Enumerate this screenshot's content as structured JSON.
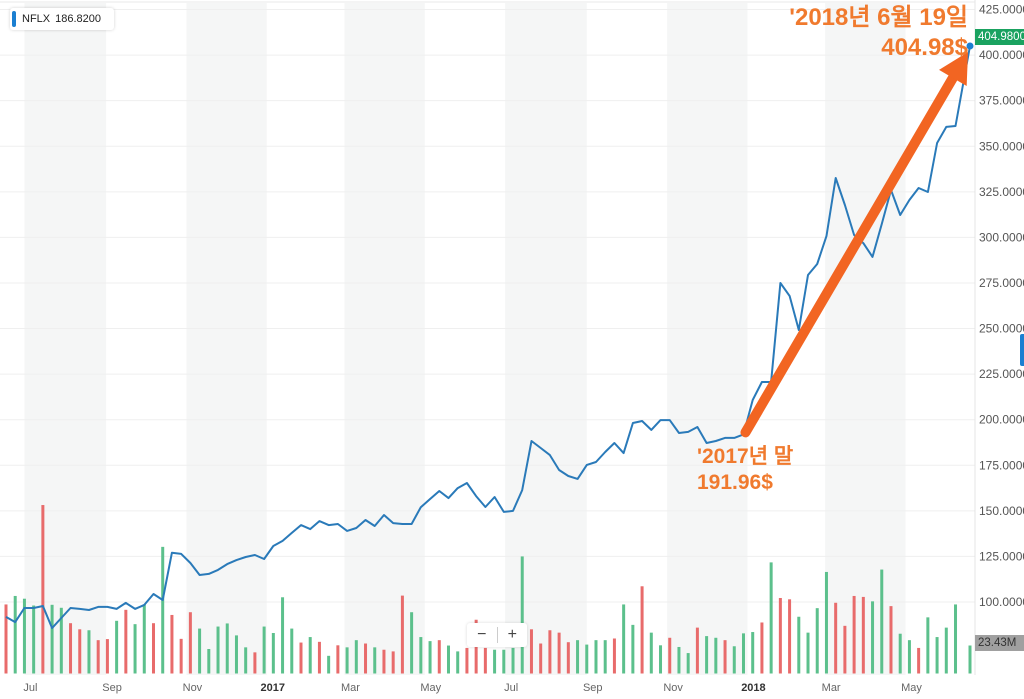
{
  "legend": {
    "symbol": "NFLX",
    "value": "186.8200"
  },
  "price_badge": "404.9800",
  "volume_badge": "23.43M",
  "zoom_controls": {
    "minus": "−",
    "plus": "+"
  },
  "annotations": {
    "end_date": "'2018년 6월 19일",
    "end_price": "404.98$",
    "start_date": "'2017년 말",
    "start_price": "191.96$"
  },
  "colors": {
    "line": "#2a7ab9",
    "up": "#5cc08c",
    "down": "#e86b6b",
    "band": "#f5f6f6",
    "annotation": "#f26522",
    "price_badge": "#1aa260"
  },
  "chart_data": {
    "type": "line",
    "title": "",
    "xlabel": "",
    "ylabel": "",
    "ylim": [
      90,
      425
    ],
    "y_ticks": [
      "100.0000",
      "125.0000",
      "150.0000",
      "175.0000",
      "200.0000",
      "225.0000",
      "250.0000",
      "275.0000",
      "300.0000",
      "325.0000",
      "350.0000",
      "375.0000",
      "400.0000",
      "425.0000"
    ],
    "y_tick_values": [
      100,
      125,
      150,
      175,
      200,
      225,
      250,
      275,
      300,
      325,
      350,
      375,
      400,
      425
    ],
    "x_ticks": [
      {
        "label": "Jul",
        "date": "2016-07-01"
      },
      {
        "label": "Sep",
        "date": "2016-09-01"
      },
      {
        "label": "Nov",
        "date": "2016-11-01"
      },
      {
        "label": "2017",
        "date": "2017-01-01",
        "major": true
      },
      {
        "label": "Mar",
        "date": "2017-03-01"
      },
      {
        "label": "May",
        "date": "2017-05-01"
      },
      {
        "label": "Jul",
        "date": "2017-07-01"
      },
      {
        "label": "Sep",
        "date": "2017-09-01"
      },
      {
        "label": "Nov",
        "date": "2017-11-01"
      },
      {
        "label": "2018",
        "date": "2018-01-01",
        "major": true
      },
      {
        "label": "Mar",
        "date": "2018-03-01"
      },
      {
        "label": "May",
        "date": "2018-05-01"
      }
    ],
    "shaded_bands": [
      [
        "2016-07-01",
        "2016-09-01"
      ],
      [
        "2016-11-01",
        "2017-01-01"
      ],
      [
        "2017-03-01",
        "2017-05-01"
      ],
      [
        "2017-07-01",
        "2017-09-01"
      ],
      [
        "2017-11-01",
        "2018-01-01"
      ],
      [
        "2018-03-01",
        "2018-05-01"
      ]
    ],
    "grid": true,
    "x": [
      "2016-06-17",
      "2016-06-24",
      "2016-07-01",
      "2016-07-08",
      "2016-07-15",
      "2016-07-22",
      "2016-07-29",
      "2016-08-05",
      "2016-08-12",
      "2016-08-19",
      "2016-08-26",
      "2016-09-02",
      "2016-09-09",
      "2016-09-16",
      "2016-09-23",
      "2016-09-30",
      "2016-10-07",
      "2016-10-14",
      "2016-10-21",
      "2016-10-28",
      "2016-11-04",
      "2016-11-11",
      "2016-11-18",
      "2016-11-25",
      "2016-12-02",
      "2016-12-09",
      "2016-12-16",
      "2016-12-23",
      "2016-12-30",
      "2017-01-06",
      "2017-01-13",
      "2017-01-20",
      "2017-01-27",
      "2017-02-03",
      "2017-02-10",
      "2017-02-17",
      "2017-02-24",
      "2017-03-03",
      "2017-03-10",
      "2017-03-17",
      "2017-03-24",
      "2017-03-31",
      "2017-04-07",
      "2017-04-14",
      "2017-04-21",
      "2017-04-28",
      "2017-05-05",
      "2017-05-12",
      "2017-05-19",
      "2017-05-26",
      "2017-06-02",
      "2017-06-09",
      "2017-06-16",
      "2017-06-23",
      "2017-06-30",
      "2017-07-07",
      "2017-07-14",
      "2017-07-21",
      "2017-07-28",
      "2017-08-04",
      "2017-08-11",
      "2017-08-18",
      "2017-08-25",
      "2017-09-01",
      "2017-09-08",
      "2017-09-15",
      "2017-09-22",
      "2017-09-29",
      "2017-10-06",
      "2017-10-13",
      "2017-10-20",
      "2017-10-27",
      "2017-11-03",
      "2017-11-10",
      "2017-11-17",
      "2017-11-24",
      "2017-12-01",
      "2017-12-08",
      "2017-12-15",
      "2017-12-22",
      "2017-12-29",
      "2018-01-05",
      "2018-01-12",
      "2018-01-19",
      "2018-01-26",
      "2018-02-02",
      "2018-02-09",
      "2018-02-16",
      "2018-02-23",
      "2018-03-02",
      "2018-03-09",
      "2018-03-16",
      "2018-03-23",
      "2018-03-30",
      "2018-04-06",
      "2018-04-13",
      "2018-04-20",
      "2018-04-27",
      "2018-05-04",
      "2018-05-11",
      "2018-05-18",
      "2018-05-25",
      "2018-06-01",
      "2018-06-08",
      "2018-06-19"
    ],
    "series": [
      {
        "name": "NFLX",
        "values": [
          91.8,
          89.0,
          96.7,
          96.7,
          97.8,
          85.7,
          91.2,
          96.7,
          96.2,
          95.6,
          97.3,
          97.3,
          96.2,
          99.5,
          96.2,
          98.4,
          104.4,
          101.1,
          127.0,
          126.4,
          121.4,
          114.8,
          115.4,
          117.6,
          120.8,
          123.0,
          124.7,
          125.8,
          123.6,
          130.7,
          133.5,
          137.9,
          142.2,
          140.0,
          144.4,
          142.2,
          142.8,
          139.0,
          140.6,
          145.0,
          141.7,
          147.7,
          143.3,
          142.8,
          142.8,
          152.0,
          156.5,
          160.9,
          157.0,
          162.5,
          165.3,
          158.1,
          152.1,
          157.6,
          149.4,
          150.0,
          161.4,
          188.3,
          184.5,
          180.6,
          172.4,
          169.1,
          167.5,
          175.2,
          176.8,
          182.3,
          187.2,
          181.7,
          198.2,
          199.3,
          194.4,
          199.8,
          199.8,
          192.7,
          193.3,
          196.0,
          187.2,
          188.3,
          190.0,
          190.0,
          191.96,
          210.8,
          220.7,
          220.7,
          275.0,
          267.9,
          249.2,
          279.4,
          285.4,
          300.8,
          332.6,
          317.8,
          301.3,
          296.9,
          289.3,
          307.4,
          326.0,
          312.3,
          320.5,
          327.1,
          324.9,
          351.8,
          360.6,
          361.1,
          404.98
        ]
      }
    ],
    "volume_millions": [
      57.8,
      64.9,
      62.6,
      56.9,
      141,
      57.5,
      55.0,
      42.1,
      37.0,
      36.2,
      27.9,
      28.8,
      44.1,
      53.3,
      41.3,
      57.8,
      42.1,
      106,
      49.0,
      29.0,
      51.3,
      37.6,
      20.5,
      39.3,
      41.9,
      31.9,
      21.9,
      17.7,
      39.3,
      33.9,
      63.8,
      37.6,
      25.9,
      30.5,
      26.5,
      14.8,
      23.6,
      21.9,
      27.9,
      25.1,
      21.9,
      19.9,
      18.5,
      65.2,
      51.3,
      30.5,
      27.1,
      27.9,
      23.4,
      18.5,
      21.4,
      45,
      21.4,
      19.9,
      19.9,
      21.4,
      98,
      37.0,
      25.1,
      36.2,
      34.2,
      26.2,
      27.9,
      24.2,
      27.9,
      27.9,
      29.3,
      57.8,
      40.7,
      73,
      34.2,
      23.6,
      29.9,
      22.2,
      17.1,
      38.4,
      31.3,
      29.9,
      27.9,
      22.8,
      33.6,
      34.7,
      42.7,
      93,
      63.2,
      62.1,
      47.5,
      34.2,
      54.7,
      85,
      59.2,
      39.9,
      64.9,
      64.1,
      60.4,
      87,
      56.4,
      33.3,
      27.9,
      21.4,
      47.0,
      30.5,
      38.4,
      57.8,
      23.43
    ],
    "volume_direction": [
      "down",
      "up",
      "up",
      "up",
      "down",
      "up",
      "up",
      "down",
      "down",
      "up",
      "down",
      "down",
      "up",
      "down",
      "up",
      "up",
      "down",
      "up",
      "down",
      "down",
      "down",
      "up",
      "up",
      "up",
      "up",
      "up",
      "up",
      "down",
      "up",
      "up",
      "up",
      "up",
      "down",
      "up",
      "down",
      "up",
      "down",
      "up",
      "up",
      "down",
      "up",
      "down",
      "down",
      "down",
      "up",
      "up",
      "up",
      "down",
      "up",
      "up",
      "down",
      "down",
      "down",
      "up",
      "up",
      "up",
      "up",
      "down",
      "down",
      "down",
      "down",
      "down",
      "up",
      "up",
      "up",
      "up",
      "down",
      "up",
      "up",
      "down",
      "up",
      "up",
      "down",
      "up",
      "up",
      "down",
      "up",
      "up",
      "down",
      "up",
      "up",
      "up",
      "down",
      "up",
      "down",
      "down",
      "up",
      "up",
      "up",
      "up",
      "down",
      "down",
      "down",
      "down",
      "up",
      "up",
      "down",
      "up",
      "up",
      "down",
      "up",
      "up",
      "up",
      "up",
      "up"
    ]
  }
}
